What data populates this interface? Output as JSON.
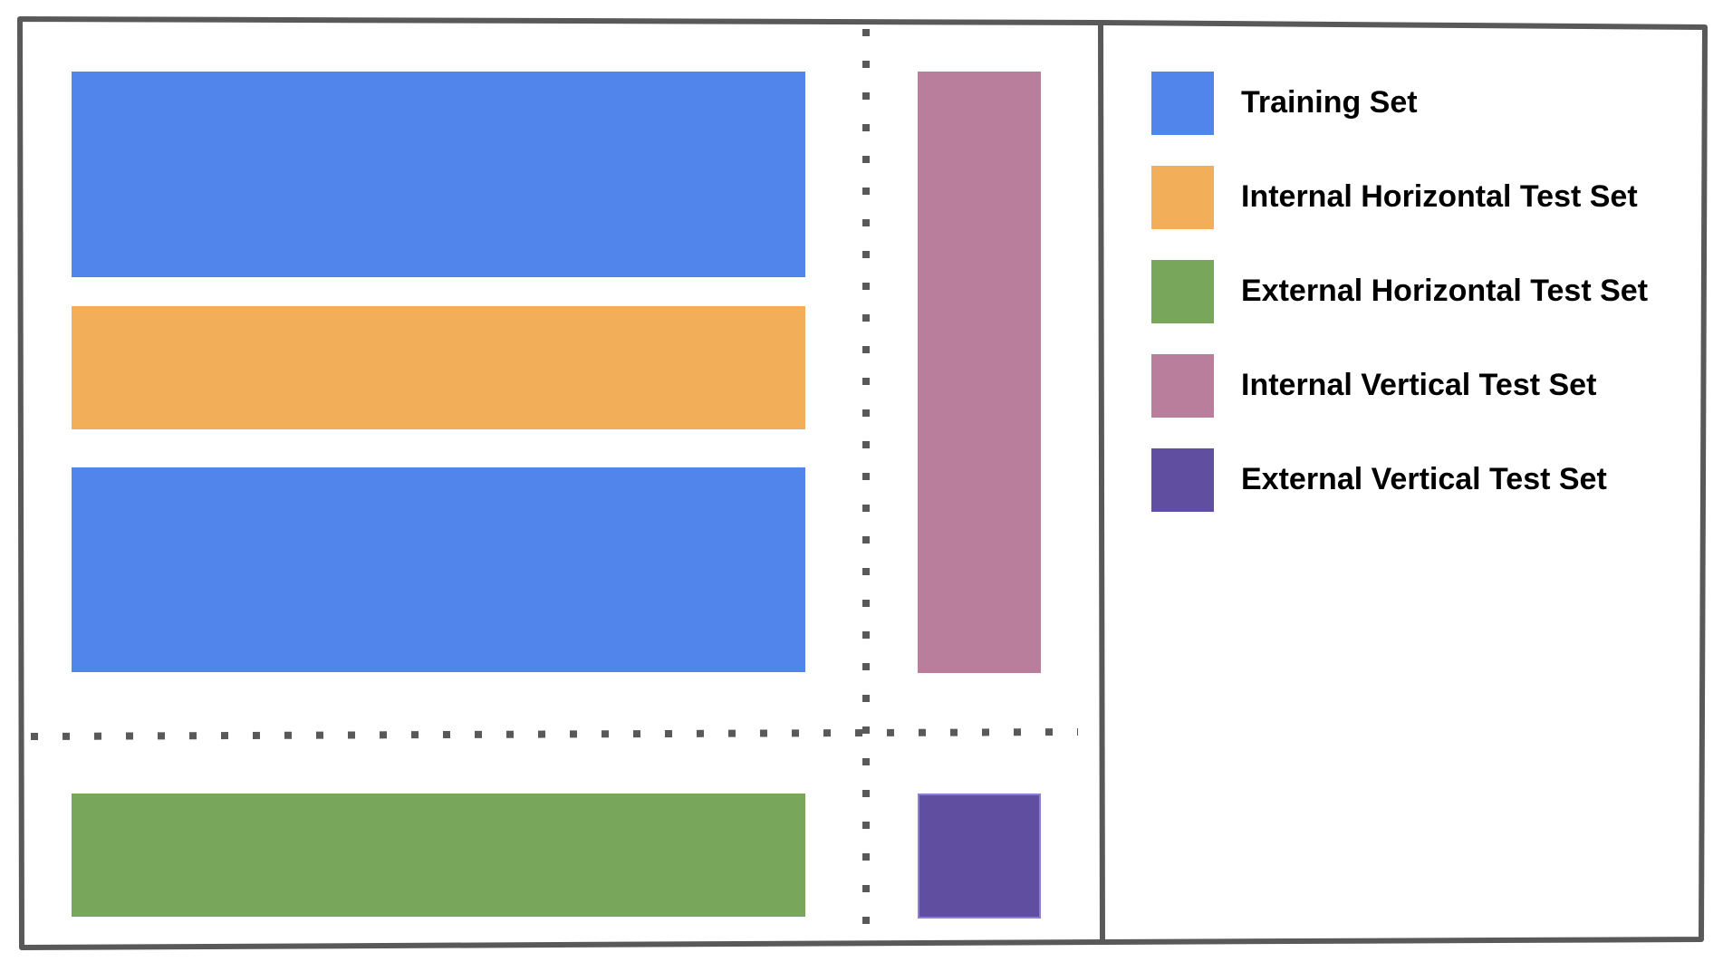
{
  "legend": {
    "items": [
      {
        "key": "training",
        "label": "Training Set",
        "color": "#5285EC"
      },
      {
        "key": "internal_horizontal",
        "label": "Internal Horizontal Test Set",
        "color": "#F2AE58"
      },
      {
        "key": "external_horizontal",
        "label": "External Horizontal Test Set",
        "color": "#78A65A"
      },
      {
        "key": "internal_vertical",
        "label": "Internal Vertical Test Set",
        "color": "#B87E9C"
      },
      {
        "key": "external_vertical",
        "label": "External Vertical Test Set",
        "color": "#604FA1"
      }
    ]
  },
  "style": {
    "frame_color": "#595959",
    "external_vertical_border": "#8A7FD0"
  }
}
